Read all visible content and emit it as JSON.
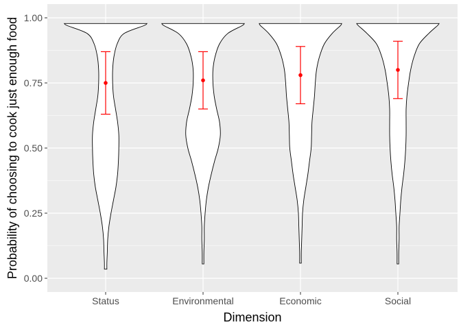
{
  "chart_data": {
    "type": "violin",
    "title": "",
    "xlabel": "Dimension",
    "ylabel": "Probability of choosing to cook just enough food",
    "ylim": [
      -0.05,
      1.015
    ],
    "y_ticks": [
      "0.00",
      "0.25",
      "0.50",
      "0.75",
      "1.00"
    ],
    "y_tick_values": [
      0,
      0.25,
      0.5,
      0.75,
      1.0
    ],
    "grid": true,
    "categories": [
      "Status",
      "Environmental",
      "Economic",
      "Social"
    ],
    "series": [
      {
        "category": "Status",
        "mean": 0.75,
        "ci_low": 0.63,
        "ci_high": 0.87,
        "density": [
          [
            0.035,
            0.03
          ],
          [
            0.06,
            0.03
          ],
          [
            0.1,
            0.04
          ],
          [
            0.15,
            0.05
          ],
          [
            0.2,
            0.08
          ],
          [
            0.25,
            0.13
          ],
          [
            0.3,
            0.19
          ],
          [
            0.35,
            0.25
          ],
          [
            0.4,
            0.29
          ],
          [
            0.45,
            0.31
          ],
          [
            0.5,
            0.32
          ],
          [
            0.55,
            0.32
          ],
          [
            0.6,
            0.29
          ],
          [
            0.65,
            0.24
          ],
          [
            0.7,
            0.19
          ],
          [
            0.75,
            0.17
          ],
          [
            0.8,
            0.17
          ],
          [
            0.85,
            0.2
          ],
          [
            0.9,
            0.28
          ],
          [
            0.94,
            0.45
          ],
          [
            0.97,
            0.93
          ],
          [
            0.978,
            1.0
          ]
        ]
      },
      {
        "category": "Environmental",
        "mean": 0.76,
        "ci_low": 0.65,
        "ci_high": 0.87,
        "density": [
          [
            0.055,
            0.02
          ],
          [
            0.1,
            0.02
          ],
          [
            0.15,
            0.03
          ],
          [
            0.2,
            0.03
          ],
          [
            0.25,
            0.05
          ],
          [
            0.3,
            0.08
          ],
          [
            0.35,
            0.13
          ],
          [
            0.4,
            0.2
          ],
          [
            0.45,
            0.28
          ],
          [
            0.5,
            0.37
          ],
          [
            0.55,
            0.42
          ],
          [
            0.6,
            0.4
          ],
          [
            0.65,
            0.33
          ],
          [
            0.7,
            0.27
          ],
          [
            0.75,
            0.24
          ],
          [
            0.8,
            0.24
          ],
          [
            0.85,
            0.29
          ],
          [
            0.9,
            0.4
          ],
          [
            0.94,
            0.6
          ],
          [
            0.97,
            0.95
          ],
          [
            0.978,
            1.0
          ]
        ]
      },
      {
        "category": "Economic",
        "mean": 0.78,
        "ci_low": 0.67,
        "ci_high": 0.89,
        "density": [
          [
            0.058,
            0.02
          ],
          [
            0.1,
            0.02
          ],
          [
            0.15,
            0.03
          ],
          [
            0.2,
            0.04
          ],
          [
            0.25,
            0.05
          ],
          [
            0.3,
            0.08
          ],
          [
            0.35,
            0.13
          ],
          [
            0.4,
            0.18
          ],
          [
            0.45,
            0.22
          ],
          [
            0.5,
            0.26
          ],
          [
            0.55,
            0.27
          ],
          [
            0.6,
            0.28
          ],
          [
            0.65,
            0.31
          ],
          [
            0.7,
            0.34
          ],
          [
            0.75,
            0.36
          ],
          [
            0.8,
            0.39
          ],
          [
            0.85,
            0.46
          ],
          [
            0.9,
            0.58
          ],
          [
            0.94,
            0.77
          ],
          [
            0.97,
            0.97
          ],
          [
            0.978,
            1.0
          ]
        ]
      },
      {
        "category": "Social",
        "mean": 0.8,
        "ci_low": 0.69,
        "ci_high": 0.91,
        "density": [
          [
            0.055,
            0.02
          ],
          [
            0.1,
            0.02
          ],
          [
            0.15,
            0.03
          ],
          [
            0.2,
            0.03
          ],
          [
            0.25,
            0.05
          ],
          [
            0.3,
            0.07
          ],
          [
            0.35,
            0.1
          ],
          [
            0.4,
            0.14
          ],
          [
            0.45,
            0.17
          ],
          [
            0.5,
            0.19
          ],
          [
            0.55,
            0.2
          ],
          [
            0.6,
            0.2
          ],
          [
            0.65,
            0.2
          ],
          [
            0.7,
            0.22
          ],
          [
            0.75,
            0.26
          ],
          [
            0.8,
            0.31
          ],
          [
            0.85,
            0.39
          ],
          [
            0.9,
            0.52
          ],
          [
            0.94,
            0.75
          ],
          [
            0.97,
            0.96
          ],
          [
            0.978,
            1.0
          ]
        ]
      }
    ],
    "colors": {
      "panel_bg": "#ebebeb",
      "grid": "#ffffff",
      "violin_fill": "#ffffff",
      "violin_stroke": "#000000",
      "point": "#ff0000",
      "errorbar": "#ff0000",
      "tick_text": "#4d4d4d",
      "axis_title": "#000000"
    }
  }
}
